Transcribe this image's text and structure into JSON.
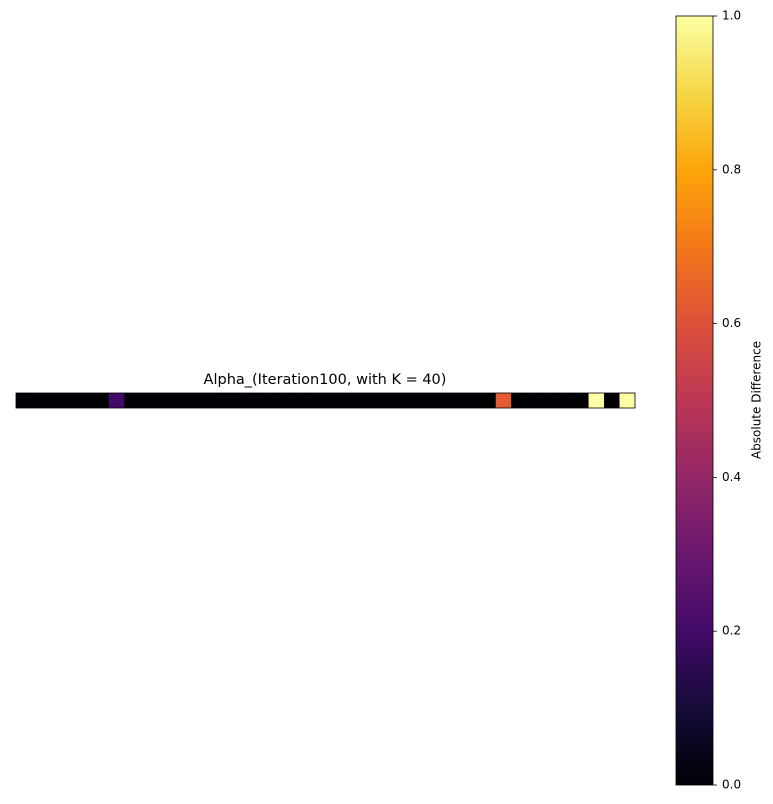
{
  "chart_data": {
    "type": "heatmap",
    "title": "Alpha_(Iteration100, with K = 40)",
    "values": [
      [
        0,
        0,
        0,
        0,
        0,
        0,
        0.2,
        0,
        0,
        0,
        0,
        0,
        0,
        0,
        0,
        0,
        0,
        0,
        0,
        0,
        0,
        0,
        0,
        0,
        0,
        0,
        0,
        0,
        0,
        0,
        0,
        0.63,
        0,
        0,
        0,
        0,
        0,
        1,
        0,
        1
      ]
    ],
    "colormap": "inferno",
    "clim": [
      0,
      1
    ],
    "cticks": [
      0.0,
      0.2,
      0.4,
      0.6,
      0.8,
      1.0
    ],
    "colorbar_label": "Absolute Difference"
  }
}
